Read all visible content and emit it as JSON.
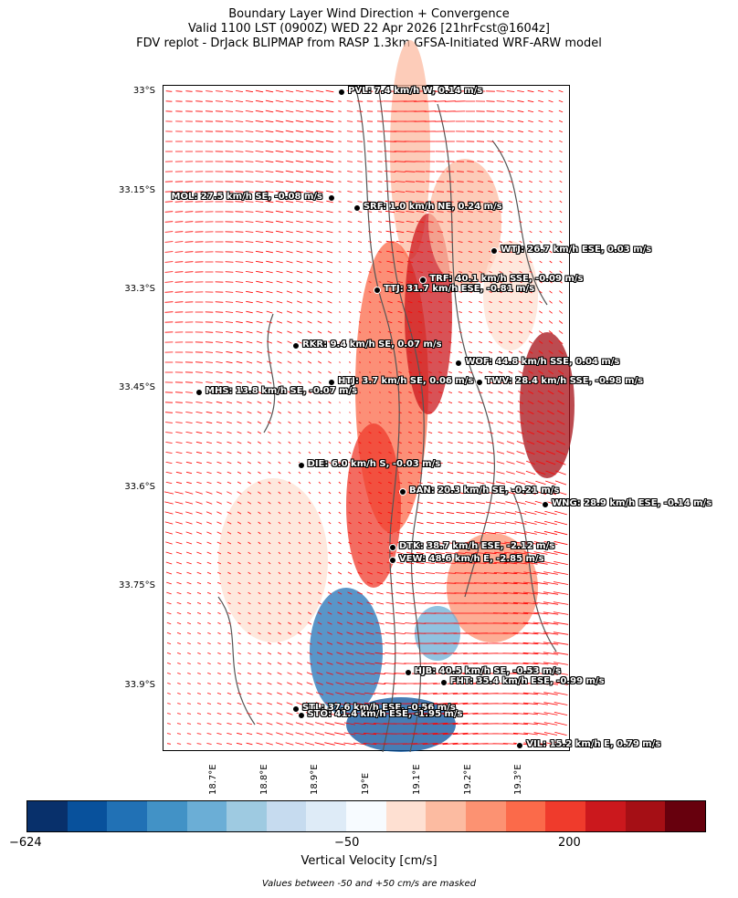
{
  "title": {
    "line1": "Boundary Layer Wind Direction + Convergence",
    "line2": "Valid 1100 LST (0900Z) WED 22 Apr 2026 [21hrFcst@1604z]",
    "line3": "FDV replot - DrJack BLIPMAP from RASP 1.3km GFSA-Initiated WRF-ARW model"
  },
  "y_axis": {
    "ticks": [
      {
        "label": "33°S",
        "lat": -33.0
      },
      {
        "label": "33.15°S",
        "lat": -33.15
      },
      {
        "label": "33.3°S",
        "lat": -33.3
      },
      {
        "label": "33.45°S",
        "lat": -33.45
      },
      {
        "label": "33.6°S",
        "lat": -33.6
      },
      {
        "label": "33.75°S",
        "lat": -33.75
      },
      {
        "label": "33.9°S",
        "lat": -33.9
      }
    ]
  },
  "x_axis": {
    "ticks": [
      {
        "label": "18.7°E",
        "lon": 18.7
      },
      {
        "label": "18.8°E",
        "lon": 18.8
      },
      {
        "label": "18.9°E",
        "lon": 18.9
      },
      {
        "label": "19°E",
        "lon": 19.0
      },
      {
        "label": "19.1°E",
        "lon": 19.1
      },
      {
        "label": "19.2°E",
        "lon": 19.2
      },
      {
        "label": "19.3°E",
        "lon": 19.3
      }
    ]
  },
  "extent": {
    "lon_min": 18.6,
    "lon_max": 19.4,
    "lat_top": -32.99,
    "lat_bottom": -34.0
  },
  "stations": [
    {
      "id": "PVL",
      "label": "PVL: 7.4 km/h W, 0.14 m/s",
      "lon": 18.95,
      "lat": -33.0,
      "side": "right"
    },
    {
      "id": "MOL",
      "label": "MOL: 27.5 km/h SE, -0.08 m/s",
      "lon": 18.93,
      "lat": -33.16,
      "side": "left"
    },
    {
      "id": "SRF",
      "label": "SRF: 1.0 km/h NE, 0.24 m/s",
      "lon": 18.98,
      "lat": -33.175,
      "side": "right"
    },
    {
      "id": "WTJ",
      "label": "WTJ: 26.7 km/h ESE, 0.03 m/s",
      "lon": 19.25,
      "lat": -33.24,
      "side": "right"
    },
    {
      "id": "TRF",
      "label": "TRF: 40.1 km/h SSE, -0.09 m/s",
      "lon": 19.11,
      "lat": -33.285,
      "side": "right"
    },
    {
      "id": "TTJ",
      "label": "TTJ: 31.7 km/h ESE, -0.81 m/s",
      "lon": 19.02,
      "lat": -33.3,
      "side": "right"
    },
    {
      "id": "RKR",
      "label": "RKR: 9.4 km/h SE, 0.07 m/s",
      "lon": 18.86,
      "lat": -33.385,
      "side": "right"
    },
    {
      "id": "WOF",
      "label": "WOF: 44.8 km/h SSE, 0.04 m/s",
      "lon": 19.18,
      "lat": -33.41,
      "side": "right"
    },
    {
      "id": "HTJ",
      "label": "HTJ: 3.7 km/h SE, 0.06 m/s",
      "lon": 18.93,
      "lat": -33.44,
      "side": "right"
    },
    {
      "id": "TWV",
      "label": "TWV: 28.4 km/h SSE, -0.98 m/s",
      "lon": 19.22,
      "lat": -33.44,
      "side": "right"
    },
    {
      "id": "MHS",
      "label": "MHS: 13.8 km/h SE, -0.07 m/s",
      "lon": 18.67,
      "lat": -33.455,
      "side": "right"
    },
    {
      "id": "DIE",
      "label": "DIE: 6.0 km/h S, -0.03 m/s",
      "lon": 18.87,
      "lat": -33.565,
      "side": "right"
    },
    {
      "id": "BAN",
      "label": "BAN: 20.3 km/h SE, -0.21 m/s",
      "lon": 19.07,
      "lat": -33.605,
      "side": "right"
    },
    {
      "id": "WNG",
      "label": "WNG: 28.9 km/h ESE, -0.14 m/s",
      "lon": 19.35,
      "lat": -33.625,
      "side": "right"
    },
    {
      "id": "DTK",
      "label": "DTK: 38.7 km/h ESE, -2.12 m/s",
      "lon": 19.05,
      "lat": -33.69,
      "side": "right"
    },
    {
      "id": "VEW",
      "label": "VEW: 48.6 km/h E, -2.85 m/s",
      "lon": 19.05,
      "lat": -33.71,
      "side": "right"
    },
    {
      "id": "HJB",
      "label": "HJB: 40.5 km/h SE, -0.53 m/s",
      "lon": 19.08,
      "lat": -33.88,
      "side": "right"
    },
    {
      "id": "FHT",
      "label": "FHT: 35.4 km/h ESE, -0.99 m/s",
      "lon": 19.15,
      "lat": -33.895,
      "side": "right"
    },
    {
      "id": "STL",
      "label": "STL: 37.6 km/h ESE, -0.56 m/s",
      "lon": 18.86,
      "lat": -33.935,
      "side": "right"
    },
    {
      "id": "STO",
      "label": "STO: 41.4 km/h ESE, -1.95 m/s",
      "lon": 18.87,
      "lat": -33.945,
      "side": "right"
    },
    {
      "id": "VIL",
      "label": "VIL: 15.2 km/h E, 0.79 m/s",
      "lon": 19.3,
      "lat": -33.99,
      "side": "right"
    }
  ],
  "colorbar": {
    "colors": [
      "#08306b",
      "#08519c",
      "#2171b5",
      "#4292c6",
      "#6baed6",
      "#9ecae1",
      "#c6dbef",
      "#deebf7",
      "#f7fbff",
      "#fee0d2",
      "#fcbba1",
      "#fc9272",
      "#fb6a4a",
      "#ef3b2c",
      "#cb181d",
      "#a50f15",
      "#67000d"
    ],
    "ticks": [
      "−624",
      "−50",
      "200"
    ],
    "label": "Vertical Velocity [cm/s]"
  },
  "note": "Values between -50 and +50 cm/s are masked",
  "colors": {
    "wind_arrows": "#ff0000",
    "contours": "#555555"
  }
}
